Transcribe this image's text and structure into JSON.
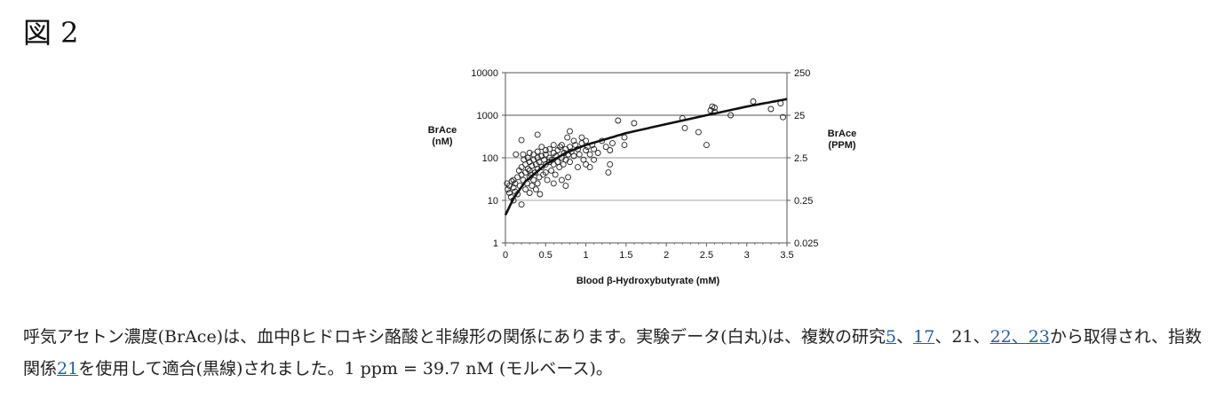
{
  "figure": {
    "title": "図 2"
  },
  "caption": {
    "parts": [
      {
        "text": "呼気アセトン濃度(BrAce)は、血中βヒドロキシ酪酸と非線形の関係にあります。実験データ(白丸)は、複数の研究",
        "link": false
      },
      {
        "text": "5",
        "link": true
      },
      {
        "text": "、",
        "link": false
      },
      {
        "text": "17",
        "link": true
      },
      {
        "text": "、21、",
        "link": false
      },
      {
        "text": "22、23",
        "link": true
      },
      {
        "text": "から取得され、指数関係",
        "link": false
      },
      {
        "text": "21",
        "link": true
      },
      {
        "text": "を使用して適合(黒線)されました。1 ppm = 39.7 nM (モルベース)。",
        "link": false
      }
    ]
  },
  "chart_data": {
    "type": "scatter",
    "xlabel": "Blood β-Hydroxybutyrate (mM)",
    "ylabel_left": [
      "BrAce",
      "(nM)"
    ],
    "ylabel_right": [
      "BrAce",
      "(PPM)"
    ],
    "xlim": [
      0,
      3.5
    ],
    "ylim": [
      1,
      10000
    ],
    "yscale": "log",
    "x_ticks": [
      "0",
      "0.5",
      "1",
      "1.5",
      "2",
      "2.5",
      "3",
      "3.5"
    ],
    "x_tick_values": [
      0,
      0.5,
      1,
      1.5,
      2,
      2.5,
      3,
      3.5
    ],
    "y_ticks_left": [
      "1",
      "10",
      "100",
      "1000",
      "10000"
    ],
    "y_tick_values_left": [
      1,
      10,
      100,
      1000,
      10000
    ],
    "y_ticks_right": [
      "0.025",
      "0.25",
      "2.5",
      "25",
      "250"
    ],
    "gridlines_nM": [
      10,
      100,
      1000
    ],
    "grid_colors": [
      "#bbbbbb",
      "#aaaaaa",
      "#777777"
    ],
    "marker": "open-circle",
    "fit_curve": {
      "label": "fit",
      "points": [
        [
          0,
          4.5
        ],
        [
          0.1,
          11
        ],
        [
          0.25,
          28
        ],
        [
          0.5,
          70
        ],
        [
          0.75,
          130
        ],
        [
          1,
          200
        ],
        [
          1.5,
          380
        ],
        [
          2,
          620
        ],
        [
          2.5,
          1000
        ],
        [
          3,
          1600
        ],
        [
          3.5,
          2400
        ]
      ]
    },
    "points": [
      [
        0.02,
        25
      ],
      [
        0.03,
        18
      ],
      [
        0.05,
        15
      ],
      [
        0.05,
        22
      ],
      [
        0.07,
        12
      ],
      [
        0.08,
        28
      ],
      [
        0.1,
        10
      ],
      [
        0.1,
        20
      ],
      [
        0.1,
        30
      ],
      [
        0.12,
        16
      ],
      [
        0.12,
        25
      ],
      [
        0.13,
        120
      ],
      [
        0.15,
        14
      ],
      [
        0.15,
        35
      ],
      [
        0.17,
        50
      ],
      [
        0.18,
        22
      ],
      [
        0.2,
        8
      ],
      [
        0.2,
        40
      ],
      [
        0.2,
        60
      ],
      [
        0.2,
        260
      ],
      [
        0.22,
        30
      ],
      [
        0.22,
        120
      ],
      [
        0.23,
        90
      ],
      [
        0.25,
        18
      ],
      [
        0.25,
        45
      ],
      [
        0.25,
        70
      ],
      [
        0.27,
        25
      ],
      [
        0.28,
        55
      ],
      [
        0.28,
        100
      ],
      [
        0.3,
        15
      ],
      [
        0.3,
        35
      ],
      [
        0.3,
        50
      ],
      [
        0.3,
        80
      ],
      [
        0.3,
        130
      ],
      [
        0.32,
        40
      ],
      [
        0.33,
        22
      ],
      [
        0.33,
        65
      ],
      [
        0.35,
        30
      ],
      [
        0.35,
        90
      ],
      [
        0.35,
        120
      ],
      [
        0.37,
        45
      ],
      [
        0.38,
        18
      ],
      [
        0.38,
        70
      ],
      [
        0.4,
        25
      ],
      [
        0.4,
        55
      ],
      [
        0.4,
        100
      ],
      [
        0.4,
        140
      ],
      [
        0.4,
        350
      ],
      [
        0.42,
        35
      ],
      [
        0.42,
        80
      ],
      [
        0.43,
        14
      ],
      [
        0.45,
        60
      ],
      [
        0.45,
        110
      ],
      [
        0.45,
        180
      ],
      [
        0.47,
        40
      ],
      [
        0.48,
        90
      ],
      [
        0.5,
        45
      ],
      [
        0.5,
        70
      ],
      [
        0.5,
        120
      ],
      [
        0.5,
        150
      ],
      [
        0.52,
        30
      ],
      [
        0.55,
        80
      ],
      [
        0.55,
        100
      ],
      [
        0.55,
        160
      ],
      [
        0.57,
        50
      ],
      [
        0.58,
        90
      ],
      [
        0.6,
        25
      ],
      [
        0.6,
        70
      ],
      [
        0.6,
        130
      ],
      [
        0.6,
        200
      ],
      [
        0.62,
        40
      ],
      [
        0.63,
        110
      ],
      [
        0.65,
        80
      ],
      [
        0.65,
        150
      ],
      [
        0.67,
        60
      ],
      [
        0.68,
        180
      ],
      [
        0.7,
        30
      ],
      [
        0.7,
        100
      ],
      [
        0.7,
        200
      ],
      [
        0.72,
        70
      ],
      [
        0.73,
        130
      ],
      [
        0.75,
        22
      ],
      [
        0.75,
        90
      ],
      [
        0.75,
        160
      ],
      [
        0.77,
        300
      ],
      [
        0.78,
        35
      ],
      [
        0.78,
        120
      ],
      [
        0.8,
        80
      ],
      [
        0.8,
        180
      ],
      [
        0.8,
        420
      ],
      [
        0.82,
        140
      ],
      [
        0.85,
        110
      ],
      [
        0.85,
        250
      ],
      [
        0.87,
        200
      ],
      [
        0.9,
        60
      ],
      [
        0.9,
        160
      ],
      [
        0.92,
        120
      ],
      [
        0.95,
        220
      ],
      [
        0.95,
        300
      ],
      [
        0.97,
        90
      ],
      [
        1.0,
        70
      ],
      [
        1.0,
        150
      ],
      [
        1.0,
        250
      ],
      [
        1.02,
        180
      ],
      [
        1.05,
        60
      ],
      [
        1.05,
        120
      ],
      [
        1.08,
        200
      ],
      [
        1.1,
        90
      ],
      [
        1.1,
        160
      ],
      [
        1.15,
        130
      ],
      [
        1.2,
        250
      ],
      [
        1.25,
        180
      ],
      [
        1.28,
        45
      ],
      [
        1.3,
        70
      ],
      [
        1.3,
        150
      ],
      [
        1.33,
        220
      ],
      [
        1.4,
        750
      ],
      [
        1.48,
        200
      ],
      [
        1.48,
        300
      ],
      [
        1.6,
        650
      ],
      [
        2.2,
        850
      ],
      [
        2.23,
        500
      ],
      [
        2.4,
        400
      ],
      [
        2.5,
        200
      ],
      [
        2.55,
        1300
      ],
      [
        2.57,
        1600
      ],
      [
        2.6,
        1500
      ],
      [
        2.6,
        1200
      ],
      [
        2.8,
        1000
      ],
      [
        3.08,
        2100
      ],
      [
        3.3,
        1400
      ],
      [
        3.42,
        1900
      ],
      [
        3.45,
        900
      ]
    ]
  }
}
